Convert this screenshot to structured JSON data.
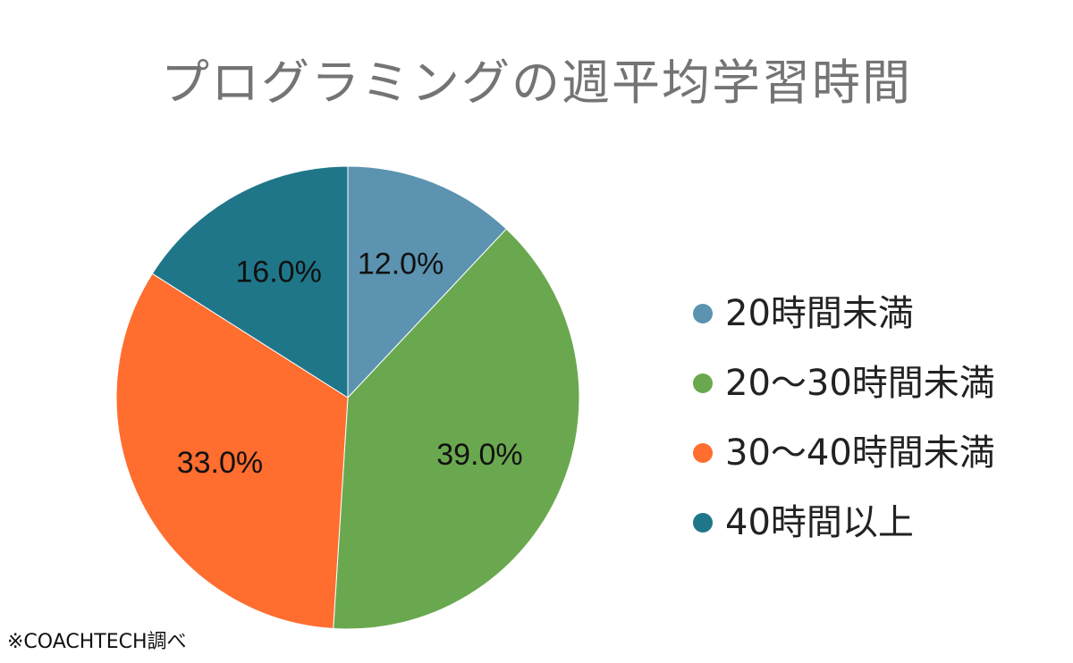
{
  "chart_data": {
    "type": "pie",
    "title": "プログラミングの週平均学習時間",
    "categories": [
      "20時間未満",
      "20〜30時間未満",
      "30〜40時間未満",
      "40時間以上"
    ],
    "values": [
      12.0,
      39.0,
      33.0,
      16.0
    ],
    "labels": [
      "12.0%",
      "39.0%",
      "33.0%",
      "16.0%"
    ],
    "colors": [
      "#5b93b0",
      "#6aa84f",
      "#ff6d2f",
      "#1f7689"
    ],
    "start_angle": "12 o'clock",
    "direction": "clockwise",
    "legend_position": "right"
  },
  "source_note": "※COACHTECH調べ"
}
